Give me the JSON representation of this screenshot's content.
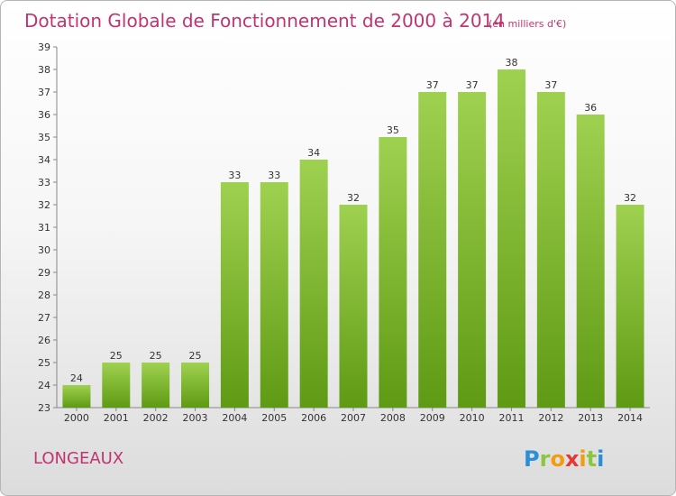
{
  "title": "Dotation Globale de Fonctionnement de 2000 à 2014",
  "subtitle": "(en milliers d'€)",
  "commune": "LONGEAUX",
  "logo": {
    "letters": [
      "P",
      "r",
      "o",
      "x",
      "i",
      "t",
      "i"
    ],
    "colors": [
      "#2a8fd6",
      "#8cc63f",
      "#f39c12",
      "#e53935",
      "#f39c12",
      "#8cc63f",
      "#2a8fd6"
    ]
  },
  "colors": {
    "bar_light": "#9fd150",
    "bar_dark": "#5f9a14",
    "title": "#c0356f"
  },
  "chart_data": {
    "type": "bar",
    "categories": [
      "2000",
      "2001",
      "2002",
      "2003",
      "2004",
      "2005",
      "2006",
      "2007",
      "2008",
      "2009",
      "2010",
      "2011",
      "2012",
      "2013",
      "2014"
    ],
    "values": [
      24,
      25,
      25,
      25,
      33,
      33,
      34,
      32,
      35,
      37,
      37,
      38,
      37,
      36,
      32
    ],
    "ylim": [
      23,
      39
    ],
    "yticks": [
      23,
      24,
      25,
      26,
      27,
      28,
      29,
      30,
      31,
      32,
      33,
      34,
      35,
      36,
      37,
      38,
      39
    ],
    "grid": false,
    "title": "Dotation Globale de Fonctionnement de 2000 à 2014",
    "xlabel": "",
    "ylabel": ""
  }
}
